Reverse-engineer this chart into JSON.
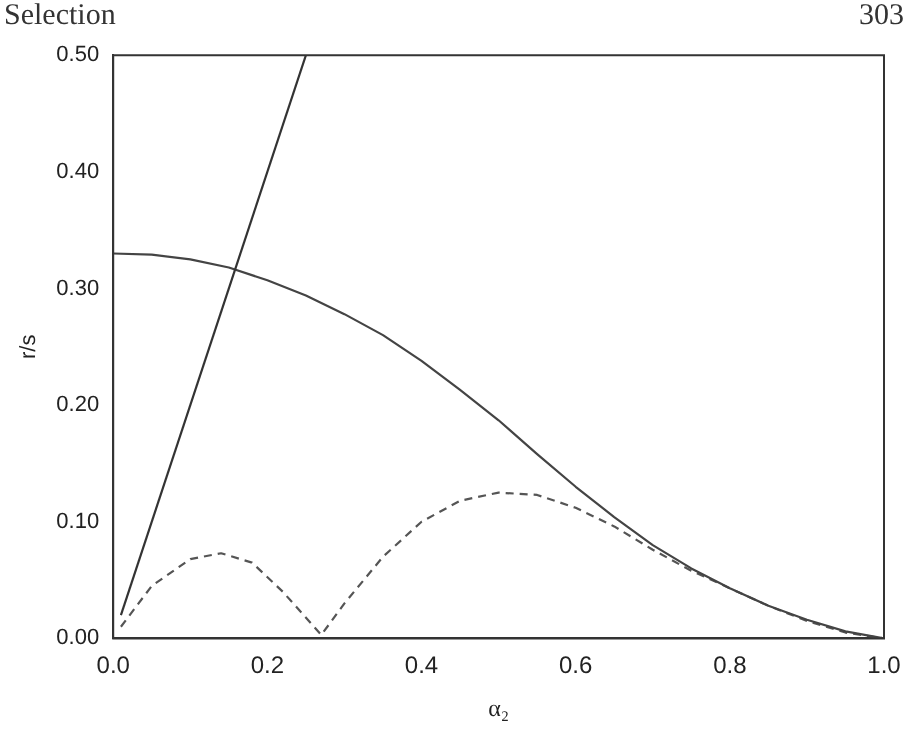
{
  "chart_data": {
    "type": "line",
    "xlabel": "α₂",
    "ylabel": "r/s",
    "annotations": [
      "Selection",
      "303"
    ],
    "xlim": [
      0,
      1
    ],
    "ylim": [
      0,
      0.5
    ],
    "xticks": [
      {
        "value": 0,
        "label": "0.0"
      },
      {
        "value": 0.2,
        "label": "0.2"
      },
      {
        "value": 0.4,
        "label": "0.4"
      },
      {
        "value": 0.6,
        "label": "0.6"
      },
      {
        "value": 0.8,
        "label": "0.8"
      },
      {
        "value": 1,
        "label": "1.0"
      }
    ],
    "yticks": [
      {
        "value": 0,
        "label": "0.00"
      },
      {
        "value": 0.1,
        "label": "0.10"
      },
      {
        "value": 0.2,
        "label": "0.20"
      },
      {
        "value": 0.3,
        "label": "0.30"
      },
      {
        "value": 0.4,
        "label": "0.40"
      },
      {
        "value": 0.5,
        "label": "0.50"
      }
    ],
    "grid": false,
    "legend": false,
    "marker": "none",
    "series": [
      {
        "color": "#333333",
        "line_style": "solid",
        "x": [
          0.01,
          0.25
        ],
        "values": [
          0.02,
          0.5
        ]
      },
      {
        "color": "#444444",
        "line_style": "solid",
        "x": [
          0,
          0.05,
          0.1,
          0.15,
          0.2,
          0.25,
          0.3,
          0.35,
          0.4,
          0.45,
          0.5,
          0.55,
          0.6,
          0.65,
          0.7,
          0.75,
          0.8,
          0.85,
          0.9,
          0.95,
          1
        ],
        "values": [
          0.33,
          0.329,
          0.325,
          0.318,
          0.307,
          0.294,
          0.278,
          0.26,
          0.238,
          0.213,
          0.187,
          0.158,
          0.13,
          0.104,
          0.08,
          0.06,
          0.043,
          0.028,
          0.016,
          0.006,
          0
        ]
      },
      {
        "color": "#555555",
        "line_style": "dashed",
        "x": [
          0.01,
          0.05,
          0.1,
          0.14,
          0.18,
          0.22,
          0.27,
          0.3,
          0.35,
          0.4,
          0.45,
          0.5,
          0.55,
          0.6,
          0.65,
          0.7,
          0.75,
          0.8,
          0.85,
          0.9,
          0.95,
          1
        ],
        "values": [
          0.01,
          0.045,
          0.068,
          0.073,
          0.065,
          0.04,
          0.003,
          0.03,
          0.07,
          0.1,
          0.118,
          0.125,
          0.123,
          0.112,
          0.096,
          0.076,
          0.058,
          0.043,
          0.028,
          0.015,
          0.005,
          0
        ]
      }
    ]
  }
}
